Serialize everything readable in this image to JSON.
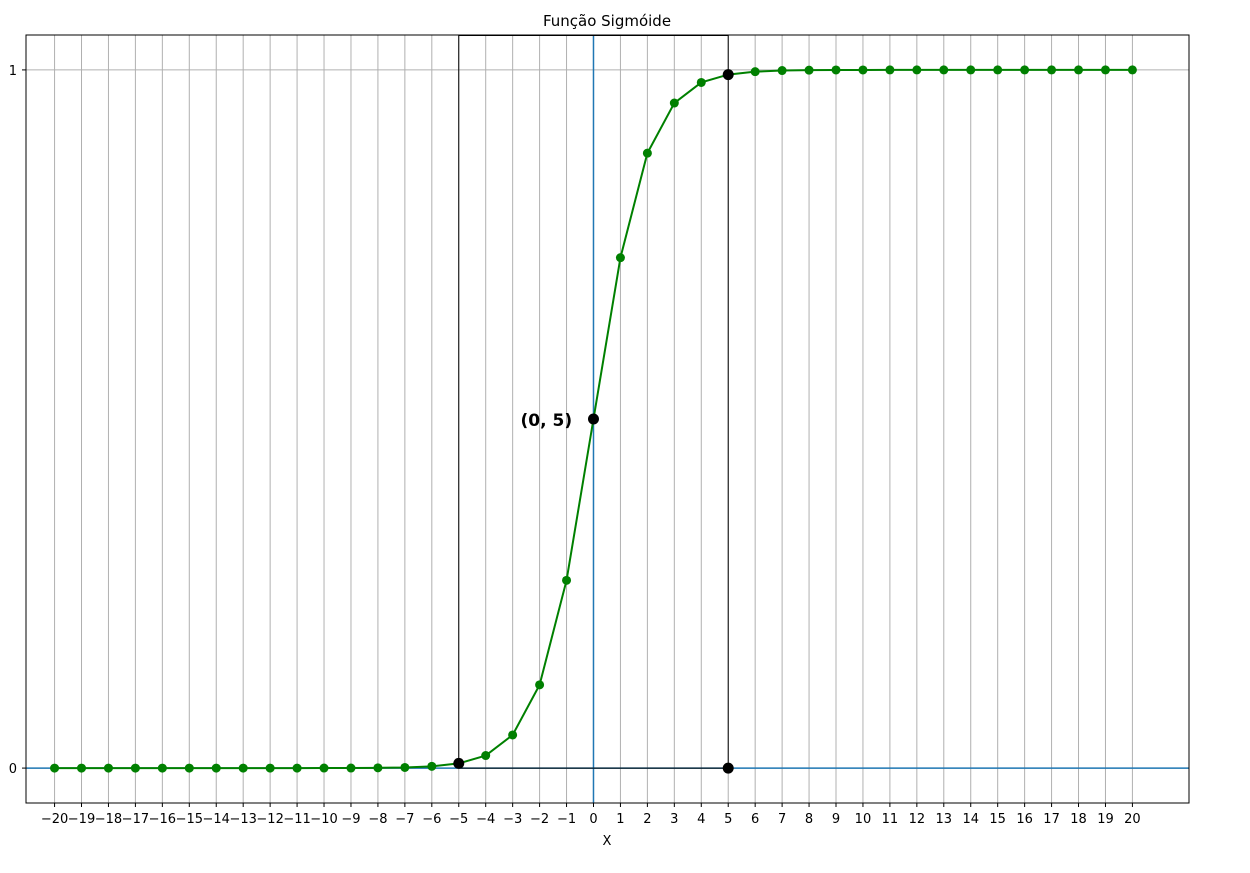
{
  "chart_data": {
    "type": "line",
    "title": "Função Sigmóide",
    "xlabel": "X",
    "ylabel": "",
    "xlim": [
      -21.06,
      22.1
    ],
    "ylim": [
      -0.05,
      1.05
    ],
    "x_ticks": [
      -20,
      -19,
      -18,
      -17,
      -16,
      -15,
      -14,
      -13,
      -12,
      -11,
      -10,
      -9,
      -8,
      -7,
      -6,
      -5,
      -4,
      -3,
      -2,
      -1,
      0,
      1,
      2,
      3,
      4,
      5,
      6,
      7,
      8,
      9,
      10,
      11,
      12,
      13,
      14,
      15,
      16,
      17,
      18,
      19,
      20
    ],
    "x_tick_labels": [
      "−20",
      "−19",
      "−18",
      "−17",
      "−16",
      "−15",
      "−14",
      "−13",
      "−12",
      "−11",
      "−10",
      "−9",
      "−8",
      "−7",
      "−6",
      "−5",
      "−4",
      "−3",
      "−2",
      "−1",
      "0",
      "1",
      "2",
      "3",
      "4",
      "5",
      "6",
      "7",
      "8",
      "9",
      "10",
      "11",
      "12",
      "13",
      "14",
      "15",
      "16",
      "17",
      "18",
      "19",
      "20"
    ],
    "y_ticks": [
      0,
      1
    ],
    "y_tick_labels": [
      "0",
      "1"
    ],
    "grid": true,
    "series": [
      {
        "color": "#008000",
        "x": [
          -20,
          -19,
          -18,
          -17,
          -16,
          -15,
          -14,
          -13,
          -12,
          -11,
          -10,
          -9,
          -8,
          -7,
          -6,
          -5,
          -4,
          -3,
          -2,
          -1,
          0,
          1,
          2,
          3,
          4,
          5,
          6,
          7,
          8,
          9,
          10,
          11,
          12,
          13,
          14,
          15,
          16,
          17,
          18,
          19,
          20
        ],
        "y": [
          0.0,
          0.0,
          0.0,
          0.0,
          0.0,
          0.0,
          0.0,
          0.0,
          1e-05,
          2e-05,
          5e-05,
          0.00012,
          0.00034,
          0.00091,
          0.00247,
          0.00669,
          0.01799,
          0.04743,
          0.1192,
          0.26894,
          0.5,
          0.73106,
          0.8808,
          0.95257,
          0.98201,
          0.99331,
          0.99753,
          0.99909,
          0.99966,
          0.99988,
          0.99995,
          0.99998,
          0.99999,
          1.0,
          1.0,
          1.0,
          1.0,
          1.0,
          1.0,
          1.0,
          1.0
        ]
      }
    ],
    "reference_lines": {
      "horizontal_y": 0,
      "vertical_x": 0,
      "color": "#1f77b4"
    },
    "rectangle": {
      "x": [
        -5,
        5
      ],
      "y": [
        0,
        1.05
      ],
      "color": "#000000"
    },
    "highlight_points": [
      {
        "x": -5,
        "y": 0.00669
      },
      {
        "x": 5,
        "y": 0.99331
      },
      {
        "x": 5,
        "y": 0
      },
      {
        "x": 0,
        "y": 0.5
      }
    ],
    "annotations": [
      {
        "text": "(0, 5)",
        "x": -1.75,
        "y": 0.49
      }
    ]
  }
}
